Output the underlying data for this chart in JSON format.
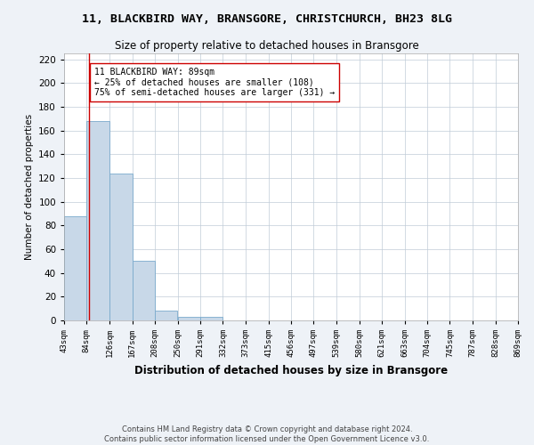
{
  "title_line1": "11, BLACKBIRD WAY, BRANSGORE, CHRISTCHURCH, BH23 8LG",
  "title_line2": "Size of property relative to detached houses in Bransgore",
  "xlabel": "Distribution of detached houses by size in Bransgore",
  "ylabel": "Number of detached properties",
  "footer_line1": "Contains HM Land Registry data © Crown copyright and database right 2024.",
  "footer_line2": "Contains public sector information licensed under the Open Government Licence v3.0.",
  "bin_edges": [
    43,
    84,
    126,
    167,
    208,
    250,
    291,
    332,
    373,
    415,
    456,
    497,
    539,
    580,
    621,
    663,
    704,
    745,
    787,
    828,
    869
  ],
  "bar_heights": [
    88,
    168,
    124,
    50,
    8,
    3,
    3,
    0,
    0,
    0,
    0,
    0,
    0,
    0,
    0,
    0,
    0,
    0,
    0,
    0
  ],
  "bar_color": "#c8d8e8",
  "bar_edge_color": "#7aaacc",
  "property_label": "11 BLACKBIRD WAY: 89sqm",
  "pct25_label": "← 25% of detached houses are smaller (108)",
  "pct75_label": "75% of semi-detached houses are larger (331) →",
  "vline_x": 89,
  "vline_color": "#cc0000",
  "annotation_box_edge_color": "#cc0000",
  "ylim": [
    0,
    225
  ],
  "yticks": [
    0,
    20,
    40,
    60,
    80,
    100,
    120,
    140,
    160,
    180,
    200,
    220
  ],
  "background_color": "#eef2f7",
  "plot_background_color": "#ffffff",
  "grid_color": "#c0ccd8"
}
